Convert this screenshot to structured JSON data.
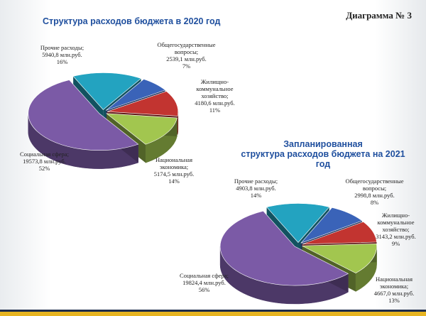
{
  "page_label": "Диаграмма № 3",
  "chart_data": [
    {
      "type": "pie",
      "title": "Структура расходов бюджета в 2020 год",
      "categories": [
        "Прочие расходы;",
        "Общегосударственные вопросы;",
        "Жилищно-коммунальное хозяйство;",
        "Национальная экономика;",
        "Социальная сфера;"
      ],
      "values": [
        5940.8,
        2539.1,
        4180.6,
        5174.5,
        19573.8
      ],
      "value_labels": [
        "5940,8 млн.руб.",
        "2539,1 млн.руб.",
        "4180,6 млн.руб.",
        "5174,5 млн.руб.",
        "19573,8 млн.руб."
      ],
      "percents": [
        16,
        7,
        11,
        14,
        52
      ],
      "percent_labels": [
        "16%",
        "7%",
        "11%",
        "14%",
        "52%"
      ],
      "colors": [
        "#23a3c0",
        "#3a63b8",
        "#c23430",
        "#a2c64f",
        "#7b5aa6"
      ]
    },
    {
      "type": "pie",
      "title": "Запланированная\nструктура расходов бюджета на 2021 год",
      "categories": [
        "Прочие расходы;",
        "Общегосударственные вопросы;",
        "Жилищно-коммунальное хозяйство;",
        "Национальная экономика;",
        "Социальная сфера;"
      ],
      "values": [
        4903.8,
        2998.8,
        3143.2,
        4667,
        19824.4
      ],
      "value_labels": [
        "4903,8 млн.руб.",
        "2998,8 млн.руб.",
        "3143,2 млн.руб.",
        "4667,0 млн.руб.",
        "19824,4 млн.руб."
      ],
      "percents": [
        14,
        8,
        9,
        13,
        56
      ],
      "percent_labels": [
        "14%",
        "8%",
        "9%",
        "13%",
        "56%"
      ],
      "colors": [
        "#23a3c0",
        "#3a63b8",
        "#c23430",
        "#a2c64f",
        "#7b5aa6"
      ]
    }
  ]
}
